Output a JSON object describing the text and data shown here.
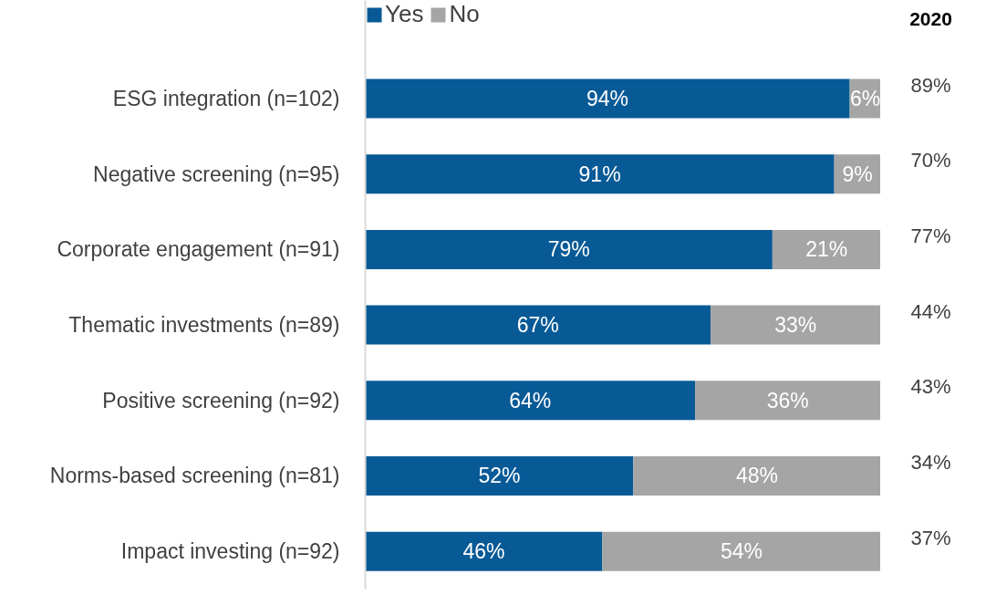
{
  "chart_data": {
    "type": "bar",
    "orientation": "horizontal",
    "stacked": true,
    "legend": "top",
    "tick_labels": "y",
    "categories": [
      "ESG integration (n=102)",
      "Negative screening (n=95)",
      "Corporate engagement (n=91)",
      "Thematic investments (n=89)",
      "Positive screening (n=92)",
      "Norms-based screening (n=81)",
      "Impact investing (n=92)"
    ],
    "series": [
      {
        "name": "Yes",
        "color": "#085a96",
        "values": [
          94,
          91,
          79,
          67,
          64,
          52,
          46
        ],
        "value_labels": [
          "94%",
          "91%",
          "79%",
          "67%",
          "64%",
          "52%",
          "46%"
        ]
      },
      {
        "name": "No",
        "color": "#a5a5a5",
        "values": [
          6,
          9,
          21,
          33,
          36,
          48,
          54
        ],
        "value_labels": [
          "6%",
          "9%",
          "21%",
          "33%",
          "36%",
          "48%",
          "54%"
        ]
      }
    ],
    "annotations": [
      "2020",
      "89%",
      "70%",
      "77%",
      "44%",
      "43%",
      "34%",
      "37%"
    ]
  }
}
